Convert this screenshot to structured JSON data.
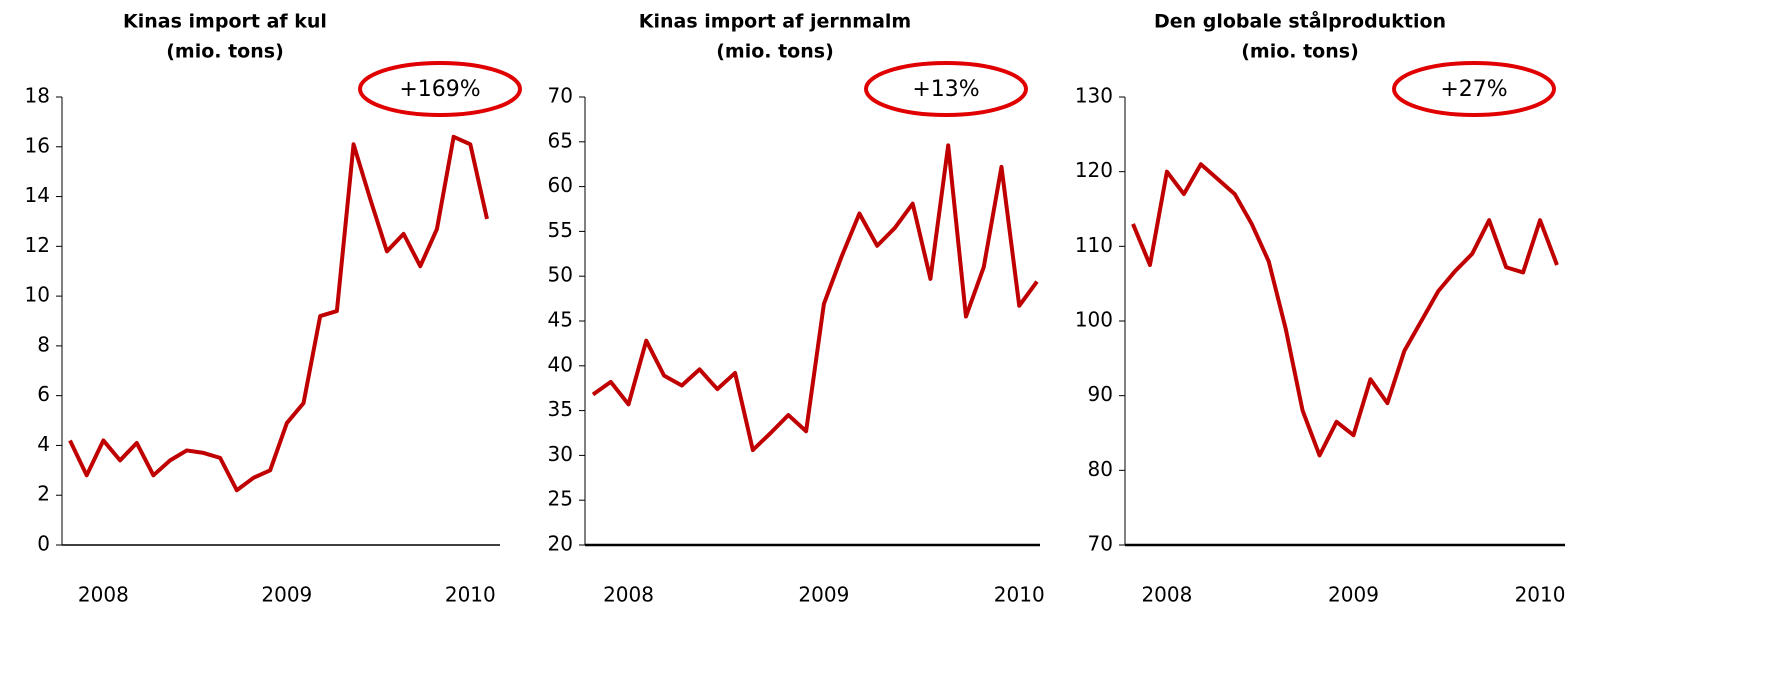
{
  "chart_data": [
    {
      "type": "line",
      "title": [
        "Kinas import af kul",
        "(mio. tons)"
      ],
      "annotation": "+169%",
      "categories": [
        null,
        null,
        "2008",
        null,
        null,
        null,
        null,
        null,
        null,
        null,
        null,
        null,
        null,
        "2009",
        null,
        null,
        null,
        null,
        null,
        null,
        null,
        null,
        null,
        null,
        "2010",
        null
      ],
      "series": [
        {
          "name": "Kinas import af kul",
          "color": "#c00000",
          "values": [
            4.2,
            2.8,
            4.2,
            3.4,
            4.1,
            2.8,
            3.4,
            3.8,
            3.7,
            3.5,
            2.2,
            2.7,
            3.0,
            4.9,
            5.7,
            9.2,
            9.4,
            16.1,
            13.9,
            11.8,
            12.5,
            11.2,
            12.7,
            16.4,
            16.1,
            13.1
          ]
        }
      ],
      "ylim": [
        0,
        18
      ],
      "yticks": [
        0,
        2,
        4,
        6,
        8,
        10,
        12,
        14,
        16,
        18
      ]
    },
    {
      "type": "line",
      "title": [
        "Kinas import af jernmalm",
        "(mio. tons)"
      ],
      "annotation": "+13%",
      "categories": [
        null,
        null,
        "2008",
        null,
        null,
        null,
        null,
        null,
        null,
        null,
        null,
        null,
        null,
        "2009",
        null,
        null,
        null,
        null,
        null,
        null,
        null,
        null,
        null,
        null,
        "2010",
        null
      ],
      "series": [
        {
          "name": "Kinas import af jernmalm",
          "color": "#c00000",
          "values": [
            36.8,
            38.2,
            35.7,
            42.8,
            38.9,
            37.8,
            39.6,
            37.4,
            39.2,
            30.6,
            32.5,
            34.5,
            32.7,
            46.9,
            52.2,
            57.0,
            53.4,
            55.4,
            58.1,
            49.7,
            64.6,
            45.5,
            51.0,
            62.2,
            46.7,
            49.4
          ]
        }
      ],
      "ylim": [
        20,
        70
      ],
      "yticks": [
        20,
        25,
        30,
        35,
        40,
        45,
        50,
        55,
        60,
        65,
        70
      ]
    },
    {
      "type": "line",
      "title": [
        "Den globale stålproduktion",
        "(mio. tons)"
      ],
      "annotation": "+27%",
      "categories": [
        null,
        null,
        "2008",
        null,
        null,
        null,
        null,
        null,
        null,
        null,
        null,
        null,
        null,
        "2009",
        null,
        null,
        null,
        null,
        null,
        null,
        null,
        null,
        null,
        null,
        "2010",
        null
      ],
      "series": [
        {
          "name": "Den globale stålproduktion",
          "color": "#c00000",
          "values": [
            113,
            107.5,
            120,
            117,
            121,
            119,
            117,
            113,
            108,
            99,
            88,
            82,
            86.5,
            84.7,
            92.2,
            89,
            96,
            100,
            104,
            106.7,
            109,
            113.5,
            107.2,
            106.5,
            113.5,
            107.5
          ]
        }
      ],
      "ylim": [
        70,
        130
      ],
      "yticks": [
        70,
        80,
        90,
        100,
        110,
        120,
        130
      ]
    }
  ]
}
